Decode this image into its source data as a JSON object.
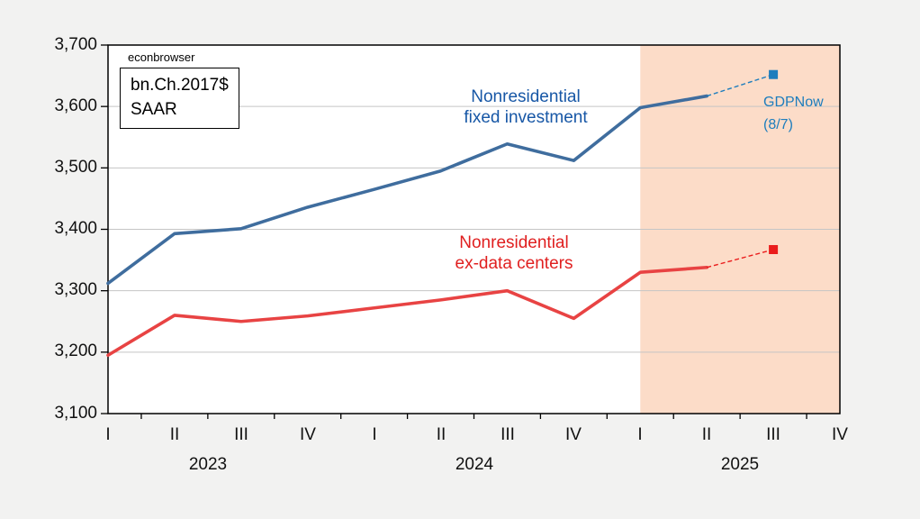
{
  "watermark": "econbrowser",
  "units_box": {
    "line1": "bn.Ch.2017$",
    "line2": "SAAR"
  },
  "chart_data": {
    "type": "line",
    "title": "",
    "x_axis": {
      "quarter_labels": [
        "I",
        "II",
        "III",
        "IV",
        "I",
        "II",
        "III",
        "IV",
        "I",
        "II",
        "III",
        "IV"
      ],
      "year_labels": [
        "2023",
        "2024",
        "2025"
      ]
    },
    "y_axis": {
      "tick_labels_top_to_bottom": [
        "3,700",
        "3,600",
        "3,500",
        "3,400",
        "3,300",
        "3,200",
        "3,100"
      ],
      "ticks": [
        3700,
        3600,
        3500,
        3400,
        3300,
        3200,
        3100
      ],
      "ylim": [
        3100,
        3700
      ]
    },
    "grid": "horizontal",
    "colors": {
      "page_background": "#f2f2f1",
      "plot_background": "#ffffff",
      "gridline": "#c5c5c5",
      "axis": "#000000",
      "shading": "#fcdcc8"
    },
    "shaded_region": {
      "start_category": "2025 I",
      "start_index": 8,
      "end_index": 11,
      "color": "#fcdcc8"
    },
    "series": [
      {
        "name": "Nonresidential fixed investment",
        "label_line1": "Nonresidential",
        "label_line2": "fixed investment",
        "color": "#3f6d9e",
        "label_color": "#1757a6",
        "values": [
          3312,
          3393,
          3401,
          3436,
          3465,
          3495,
          3539,
          3512,
          3598,
          3617
        ],
        "forecast": {
          "source": "GDPNow",
          "value": 3652,
          "index": 10,
          "color": "#1d7dbd",
          "style": "dashed-line-square-marker"
        }
      },
      {
        "name": "Nonresidential ex-data centers",
        "label_line1": "Nonresidential",
        "label_line2": "ex-data centers",
        "color": "#e84343",
        "label_color": "#e01f1f",
        "values": [
          3195,
          3260,
          3250,
          3259,
          3272,
          3285,
          3300,
          3255,
          3330,
          3338
        ],
        "forecast": {
          "source": "GDPNow",
          "value": 3367,
          "index": 10,
          "color": "#ea1c1c",
          "style": "dashed-line-square-marker"
        }
      }
    ],
    "annotations": [
      {
        "id": "gdpnow",
        "line1": "GDPNow",
        "line2": "(8/7)",
        "color": "#1d7dbd"
      }
    ]
  }
}
